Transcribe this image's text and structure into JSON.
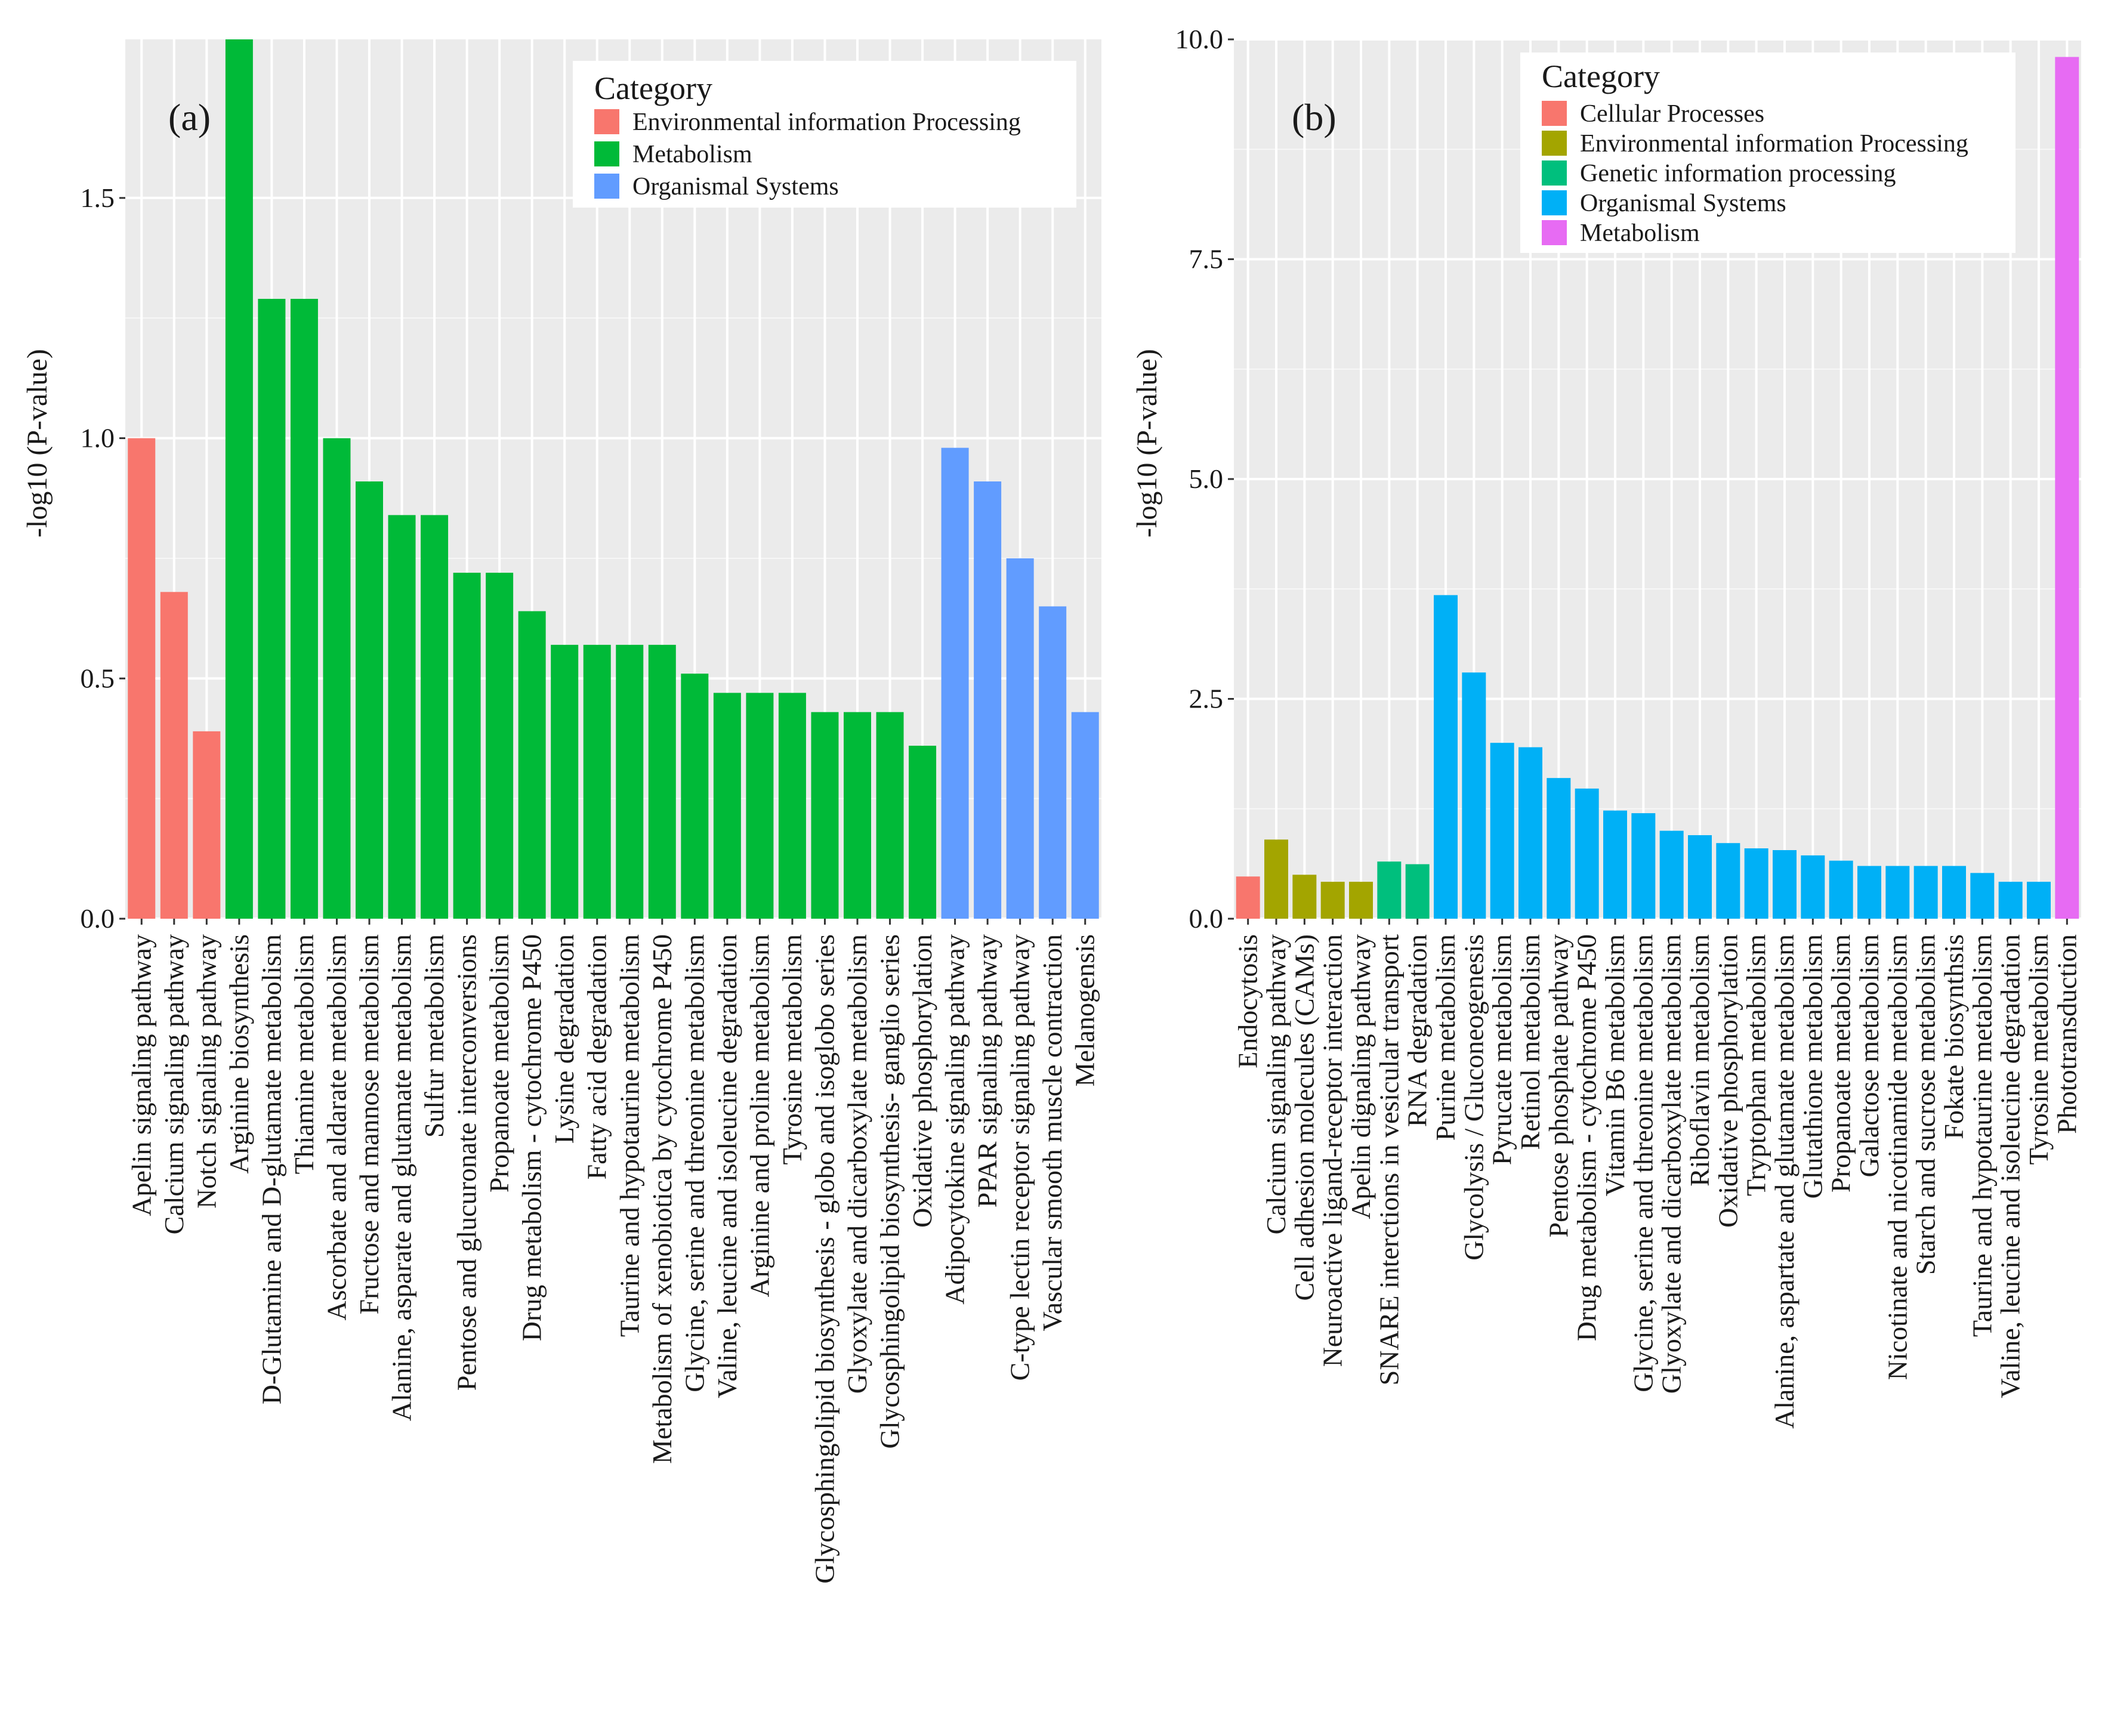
{
  "chart_data": [
    {
      "type": "bar",
      "panel_label": "(a)",
      "ylabel": "-log10 (P-value)",
      "xlabel": "",
      "ylim": [
        0,
        1.83
      ],
      "yticks": [
        0.0,
        0.5,
        1.0,
        1.5
      ],
      "ytick_labels": [
        "0.0",
        "0.5",
        "1.0",
        "1.5"
      ],
      "legend_title": "Category",
      "legend_position": "top-right",
      "legend": [
        {
          "name": "Environmental information Processing",
          "color": "#F8766D"
        },
        {
          "name": "Metabolism",
          "color": "#00BA38"
        },
        {
          "name": "Organismal Systems",
          "color": "#619CFF"
        }
      ],
      "categories": [
        "Apelin signaling pathway",
        "Calcium signaling pathway",
        "Notch signaling pathway",
        "Arginine biosynthesis",
        "D-Glutamine and D-glutamate metabolism",
        "Thiamine metabolism",
        "Ascorbate and aldarate metabolism",
        "Fructose and mannose metabolism",
        "Alanine, asparate and glutamate metabolism",
        "Sulfur metabolism",
        "Pentose and glucuronate interconversions",
        "Propanoate metabolism",
        "Drug metabolism - cytochrome P450",
        "Lysine degradation",
        "Fatty acid degradation",
        "Taurine and hypotaurine metabolism",
        "Metabolism of xenobiotica by cytochrome P450",
        "Glycine, serine and threonine metabolism",
        "Valine, leucine and isoleucine degradation",
        "Arginine and proline metabolism",
        "Tyrosine metabolism",
        "Glycosphingolipid biosynthesis - globo and isoglobo series",
        "Glyoxylate and dicarboxylate metabolism",
        "Glycosphingolipid biosynthesis- ganglio series",
        "Oxidative phosphorylation",
        "Adipocytokine signaling pathway",
        "PPAR signaling pathway",
        "C-type lectin receptor signaling pathway",
        "Vascular smooth muscle contraction",
        "Melanogensis"
      ],
      "values": [
        1.0,
        0.68,
        0.39,
        1.83,
        1.29,
        1.29,
        1.0,
        0.91,
        0.84,
        0.84,
        0.72,
        0.72,
        0.64,
        0.57,
        0.57,
        0.57,
        0.57,
        0.51,
        0.47,
        0.47,
        0.47,
        0.43,
        0.43,
        0.43,
        0.36,
        0.98,
        0.91,
        0.75,
        0.65,
        0.43
      ],
      "groups": [
        0,
        0,
        0,
        1,
        1,
        1,
        1,
        1,
        1,
        1,
        1,
        1,
        1,
        1,
        1,
        1,
        1,
        1,
        1,
        1,
        1,
        1,
        1,
        1,
        1,
        2,
        2,
        2,
        2,
        2
      ]
    },
    {
      "type": "bar",
      "panel_label": "(b)",
      "ylabel": "-log10 (P-value)",
      "xlabel": "",
      "ylim": [
        0,
        10.0
      ],
      "yticks": [
        0.0,
        2.5,
        5.0,
        7.5,
        10.0
      ],
      "ytick_labels": [
        "0.0",
        "2.5",
        "5.0",
        "7.5",
        "10.0"
      ],
      "legend_title": "Category",
      "legend_position": "top-right",
      "legend": [
        {
          "name": "Cellular Processes",
          "color": "#F8766D"
        },
        {
          "name": "Environmental information Processing",
          "color": "#A3A500"
        },
        {
          "name": "Genetic information processing",
          "color": "#00BF7D"
        },
        {
          "name": "Organismal Systems",
          "color": "#00B0F6"
        },
        {
          "name": "Metabolism",
          "color": "#E76BF3"
        }
      ],
      "categories": [
        "Endocytosis",
        "Calcium signaling pathway",
        "Cell adhesion molecules (CAMs)",
        "Neuroactive ligand-receptor interaction",
        "Apelin dignaling pathway",
        "SNARE interctions in vesicular transport",
        "RNA degradation",
        "Purine metabolism",
        "Glycolysis / Gluconeogenesis",
        "Pyrucate metabolism",
        "Retinol metabolism",
        "Pentose phosphate pathway",
        "Drug metabolism - cytochrome P450",
        "Vitamin B6 metabolism",
        "Glycine, serine and threonine metabolism",
        "Glyoxylate and dicarboxylate metabolism",
        "Riboflavin metabolism",
        "Oxidative phosphorylation",
        "Tryptophan metabolism",
        "Alanine, aspartate and glutamate metabolism",
        "Glutathione metabolism",
        "Propanoate metabolism",
        "Galactose metabolism",
        "Nicotinate and nicotinamide metabolism",
        "Starch and sucrose metabolism",
        "Fokate biosynthsis",
        "Taurine and hypotaurine metabolism",
        "Valine, leucine and isoleucine degradation",
        "Tyrosine metabolism",
        "Phototransduction"
      ],
      "values": [
        0.48,
        0.9,
        0.5,
        0.42,
        0.42,
        0.65,
        0.62,
        3.68,
        2.8,
        2.0,
        1.95,
        1.6,
        1.48,
        1.23,
        1.2,
        1.0,
        0.95,
        0.86,
        0.8,
        0.78,
        0.72,
        0.66,
        0.6,
        0.6,
        0.6,
        0.6,
        0.52,
        0.42,
        0.42,
        9.8
      ],
      "groups": [
        0,
        1,
        1,
        1,
        1,
        2,
        2,
        3,
        3,
        3,
        3,
        3,
        3,
        3,
        3,
        3,
        3,
        3,
        3,
        3,
        3,
        3,
        3,
        3,
        3,
        3,
        3,
        3,
        3,
        4
      ]
    }
  ]
}
